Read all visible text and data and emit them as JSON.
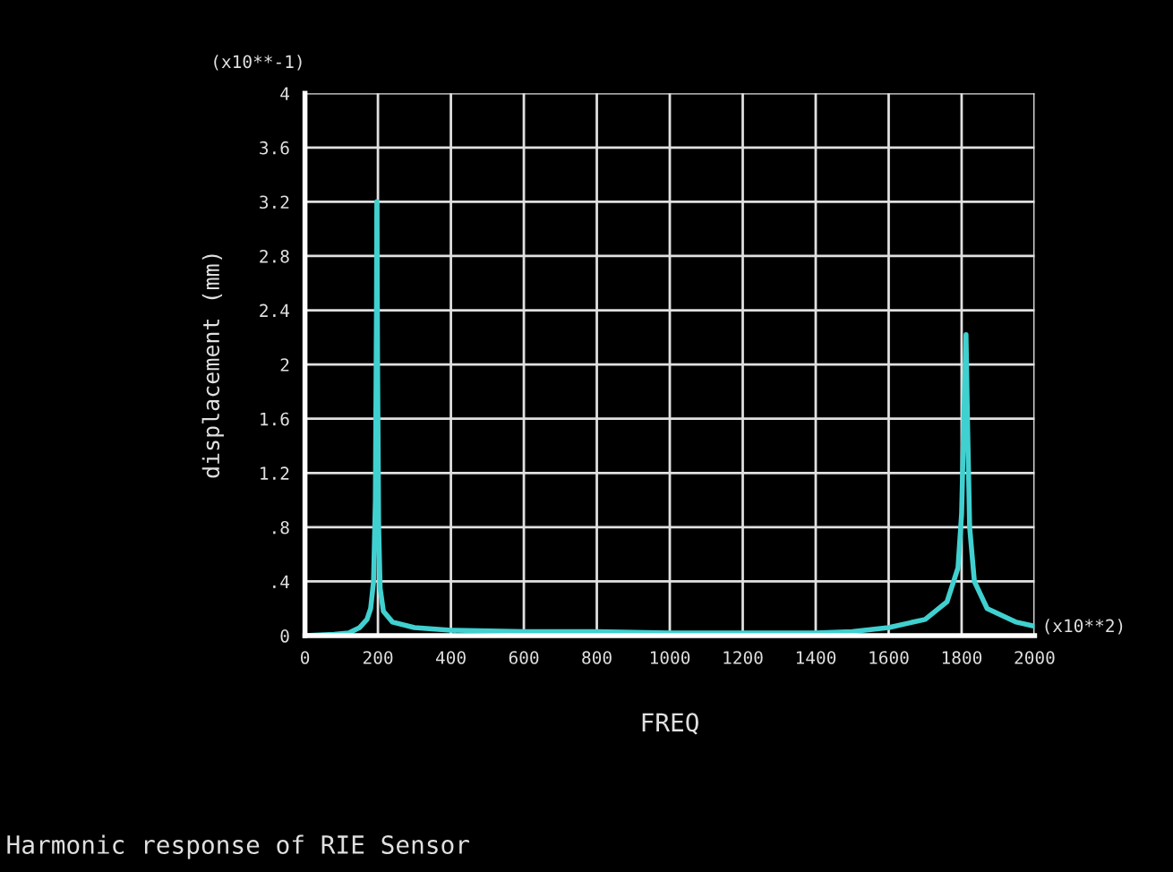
{
  "chart_data": {
    "type": "line",
    "xlabel": "FREQ",
    "ylabel": "displacement (mm)",
    "annotations": [
      "(x10**-1)",
      "(x10**2)",
      "Harmonic response of RIE Sensor"
    ],
    "x": [
      0,
      80,
      120,
      150,
      170,
      180,
      188,
      193,
      196,
      197,
      199,
      202,
      206,
      215,
      240,
      300,
      400,
      600,
      800,
      1000,
      1200,
      1400,
      1500,
      1600,
      1700,
      1760,
      1790,
      1800,
      1808,
      1812,
      1816,
      1822,
      1835,
      1870,
      1950,
      2000
    ],
    "series": [
      {
        "color": "#40d0d0",
        "values": [
          0,
          0.01,
          0.02,
          0.06,
          0.12,
          0.2,
          0.4,
          1.0,
          2.4,
          3.2,
          2.0,
          0.8,
          0.35,
          0.18,
          0.1,
          0.06,
          0.04,
          0.03,
          0.03,
          0.02,
          0.02,
          0.02,
          0.03,
          0.06,
          0.12,
          0.25,
          0.5,
          0.9,
          1.8,
          2.22,
          1.6,
          0.8,
          0.4,
          0.2,
          0.1,
          0.07
        ]
      }
    ],
    "xlim": [
      0,
      2000
    ],
    "xticks": [
      0,
      200,
      400,
      600,
      800,
      1000,
      1200,
      1400,
      1600,
      1800,
      2000
    ],
    "ylim": [
      0,
      4
    ],
    "yticks": [
      0,
      {
        "value": 0.4,
        "label": ".4"
      },
      {
        "value": 0.8,
        "label": ".8"
      },
      1.2,
      1.6,
      2,
      2.4,
      2.8,
      3.2,
      3.6,
      4
    ],
    "grid": true,
    "line_style": "solid",
    "marker": "none"
  }
}
